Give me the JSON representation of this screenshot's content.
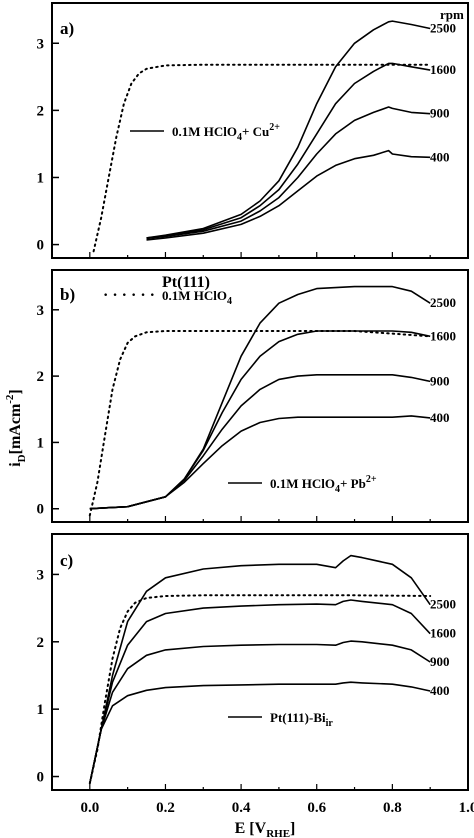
{
  "figure": {
    "pt_label": "Pt(111)",
    "reference_label": "0.1M HClO",
    "reference_sub": "4",
    "rpm_header": "rpm",
    "xlabel_main": "E [V",
    "xlabel_sub": "RHE",
    "xlabel_end": "]",
    "ylabel_main": "i",
    "ylabel_sub": "D",
    "ylabel_rest": "[mAcm",
    "ylabel_sup": "-2",
    "ylabel_end": "]"
  },
  "chart_data": [
    {
      "type": "line",
      "panel": "a)",
      "legend": {
        "main": "0.1M HClO",
        "sub": "4",
        "plus": "+ Cu",
        "sup": "2+"
      },
      "xlim": [
        -0.1,
        1.0
      ],
      "ylim": [
        -0.2,
        3.6
      ],
      "yticks": [
        0,
        1,
        2,
        3
      ],
      "series": [
        {
          "name": "2500",
          "dashed": false,
          "x": [
            0.15,
            0.2,
            0.3,
            0.4,
            0.45,
            0.5,
            0.55,
            0.6,
            0.65,
            0.7,
            0.75,
            0.79,
            0.8,
            0.85,
            0.9
          ],
          "y": [
            0.1,
            0.14,
            0.24,
            0.45,
            0.65,
            0.95,
            1.45,
            2.1,
            2.65,
            3.0,
            3.2,
            3.32,
            3.33,
            3.28,
            3.22
          ]
        },
        {
          "name": "1600",
          "dashed": false,
          "x": [
            0.15,
            0.2,
            0.3,
            0.4,
            0.45,
            0.5,
            0.55,
            0.6,
            0.65,
            0.7,
            0.75,
            0.79,
            0.8,
            0.85,
            0.9
          ],
          "y": [
            0.1,
            0.13,
            0.22,
            0.4,
            0.58,
            0.82,
            1.2,
            1.65,
            2.1,
            2.4,
            2.58,
            2.7,
            2.7,
            2.65,
            2.6
          ]
        },
        {
          "name": "900",
          "dashed": false,
          "x": [
            0.15,
            0.2,
            0.3,
            0.4,
            0.45,
            0.5,
            0.55,
            0.6,
            0.65,
            0.7,
            0.75,
            0.79,
            0.8,
            0.85,
            0.9
          ],
          "y": [
            0.09,
            0.12,
            0.2,
            0.35,
            0.5,
            0.7,
            1.0,
            1.35,
            1.65,
            1.85,
            1.97,
            2.05,
            2.03,
            1.97,
            1.95
          ]
        },
        {
          "name": "400",
          "dashed": false,
          "x": [
            0.15,
            0.2,
            0.3,
            0.4,
            0.45,
            0.5,
            0.55,
            0.6,
            0.65,
            0.7,
            0.75,
            0.79,
            0.8,
            0.85,
            0.9
          ],
          "y": [
            0.07,
            0.1,
            0.17,
            0.3,
            0.42,
            0.58,
            0.8,
            1.02,
            1.18,
            1.28,
            1.33,
            1.4,
            1.35,
            1.31,
            1.3
          ]
        },
        {
          "name": "",
          "dashed": true,
          "x": [
            0.01,
            0.03,
            0.05,
            0.07,
            0.09,
            0.11,
            0.13,
            0.15,
            0.2,
            0.3,
            0.5,
            0.7,
            0.9
          ],
          "y": [
            -0.1,
            0.4,
            1.0,
            1.6,
            2.1,
            2.4,
            2.55,
            2.62,
            2.67,
            2.68,
            2.68,
            2.68,
            2.68
          ]
        }
      ]
    },
    {
      "type": "line",
      "panel": "b)",
      "legend": {
        "main": "0.1M HClO",
        "sub": "4",
        "plus": "+ Pb",
        "sup": "2+"
      },
      "xlim": [
        -0.1,
        1.0
      ],
      "ylim": [
        -0.2,
        3.6
      ],
      "yticks": [
        0,
        1,
        2,
        3
      ],
      "series": [
        {
          "name": "2500",
          "dashed": false,
          "x": [
            0.0,
            0.1,
            0.2,
            0.25,
            0.3,
            0.35,
            0.4,
            0.45,
            0.5,
            0.55,
            0.6,
            0.7,
            0.8,
            0.85,
            0.9
          ],
          "y": [
            0.0,
            0.03,
            0.18,
            0.45,
            0.9,
            1.6,
            2.3,
            2.8,
            3.1,
            3.23,
            3.32,
            3.35,
            3.35,
            3.28,
            3.1
          ]
        },
        {
          "name": "1600",
          "dashed": false,
          "x": [
            0.0,
            0.1,
            0.2,
            0.25,
            0.3,
            0.35,
            0.4,
            0.45,
            0.5,
            0.55,
            0.6,
            0.7,
            0.8,
            0.85,
            0.9
          ],
          "y": [
            0.0,
            0.03,
            0.18,
            0.45,
            0.88,
            1.45,
            1.95,
            2.3,
            2.52,
            2.63,
            2.68,
            2.68,
            2.68,
            2.66,
            2.6
          ]
        },
        {
          "name": "900",
          "dashed": false,
          "x": [
            0.0,
            0.1,
            0.2,
            0.25,
            0.3,
            0.35,
            0.4,
            0.45,
            0.5,
            0.55,
            0.6,
            0.7,
            0.8,
            0.85,
            0.9
          ],
          "y": [
            0.0,
            0.03,
            0.18,
            0.43,
            0.8,
            1.2,
            1.55,
            1.8,
            1.95,
            2.0,
            2.02,
            2.02,
            2.02,
            1.98,
            1.92
          ]
        },
        {
          "name": "400",
          "dashed": false,
          "x": [
            0.0,
            0.1,
            0.2,
            0.25,
            0.3,
            0.35,
            0.4,
            0.45,
            0.5,
            0.55,
            0.6,
            0.7,
            0.8,
            0.85,
            0.9
          ],
          "y": [
            0.0,
            0.03,
            0.18,
            0.4,
            0.68,
            0.95,
            1.17,
            1.3,
            1.36,
            1.38,
            1.38,
            1.38,
            1.38,
            1.4,
            1.37
          ]
        },
        {
          "name": "",
          "dashed": true,
          "x": [
            0.0,
            0.02,
            0.04,
            0.06,
            0.08,
            0.1,
            0.12,
            0.15,
            0.2,
            0.3,
            0.5,
            0.7,
            0.9
          ],
          "y": [
            -0.1,
            0.4,
            1.1,
            1.8,
            2.25,
            2.5,
            2.6,
            2.66,
            2.68,
            2.68,
            2.68,
            2.68,
            2.6
          ]
        }
      ]
    },
    {
      "type": "line",
      "panel": "c)",
      "legend": {
        "main": "Pt(111)-Bi",
        "sub": "ir",
        "plus": "",
        "sup": ""
      },
      "xlim": [
        -0.1,
        1.0
      ],
      "ylim": [
        -0.2,
        3.6
      ],
      "yticks": [
        0,
        1,
        2,
        3
      ],
      "xticks": [
        0.0,
        0.2,
        0.4,
        0.6,
        0.8,
        1.0
      ],
      "xtick_labels": [
        "0.0",
        "0.2",
        "0.4",
        "0.6",
        "0.8",
        "1.0"
      ],
      "series": [
        {
          "name": "2500",
          "dashed": false,
          "x": [
            0.0,
            0.03,
            0.06,
            0.1,
            0.15,
            0.2,
            0.3,
            0.4,
            0.5,
            0.6,
            0.65,
            0.67,
            0.69,
            0.72,
            0.8,
            0.85,
            0.9
          ],
          "y": [
            -0.1,
            0.7,
            1.5,
            2.3,
            2.75,
            2.95,
            3.08,
            3.13,
            3.15,
            3.15,
            3.1,
            3.2,
            3.28,
            3.25,
            3.15,
            2.95,
            2.55
          ]
        },
        {
          "name": "1600",
          "dashed": false,
          "x": [
            0.0,
            0.03,
            0.06,
            0.1,
            0.15,
            0.2,
            0.3,
            0.4,
            0.5,
            0.6,
            0.65,
            0.67,
            0.69,
            0.72,
            0.8,
            0.85,
            0.9
          ],
          "y": [
            -0.1,
            0.7,
            1.4,
            1.95,
            2.3,
            2.42,
            2.5,
            2.53,
            2.55,
            2.56,
            2.55,
            2.6,
            2.62,
            2.6,
            2.55,
            2.42,
            2.12
          ]
        },
        {
          "name": "900",
          "dashed": false,
          "x": [
            0.0,
            0.03,
            0.06,
            0.1,
            0.15,
            0.2,
            0.3,
            0.4,
            0.5,
            0.6,
            0.65,
            0.67,
            0.69,
            0.72,
            0.8,
            0.85,
            0.9
          ],
          "y": [
            -0.1,
            0.7,
            1.25,
            1.6,
            1.8,
            1.88,
            1.93,
            1.95,
            1.96,
            1.96,
            1.95,
            1.99,
            2.01,
            2.0,
            1.95,
            1.88,
            1.7
          ]
        },
        {
          "name": "400",
          "dashed": false,
          "x": [
            0.0,
            0.03,
            0.06,
            0.1,
            0.15,
            0.2,
            0.3,
            0.4,
            0.5,
            0.6,
            0.65,
            0.67,
            0.69,
            0.72,
            0.8,
            0.85,
            0.9
          ],
          "y": [
            -0.1,
            0.7,
            1.05,
            1.2,
            1.28,
            1.32,
            1.35,
            1.36,
            1.37,
            1.37,
            1.37,
            1.39,
            1.4,
            1.39,
            1.37,
            1.33,
            1.27
          ]
        },
        {
          "name": "",
          "dashed": true,
          "x": [
            0.0,
            0.02,
            0.04,
            0.06,
            0.08,
            0.1,
            0.12,
            0.15,
            0.2,
            0.3,
            0.5,
            0.7,
            0.9
          ],
          "y": [
            -0.1,
            0.4,
            1.1,
            1.75,
            2.2,
            2.45,
            2.58,
            2.65,
            2.68,
            2.69,
            2.69,
            2.69,
            2.68
          ]
        }
      ]
    }
  ]
}
